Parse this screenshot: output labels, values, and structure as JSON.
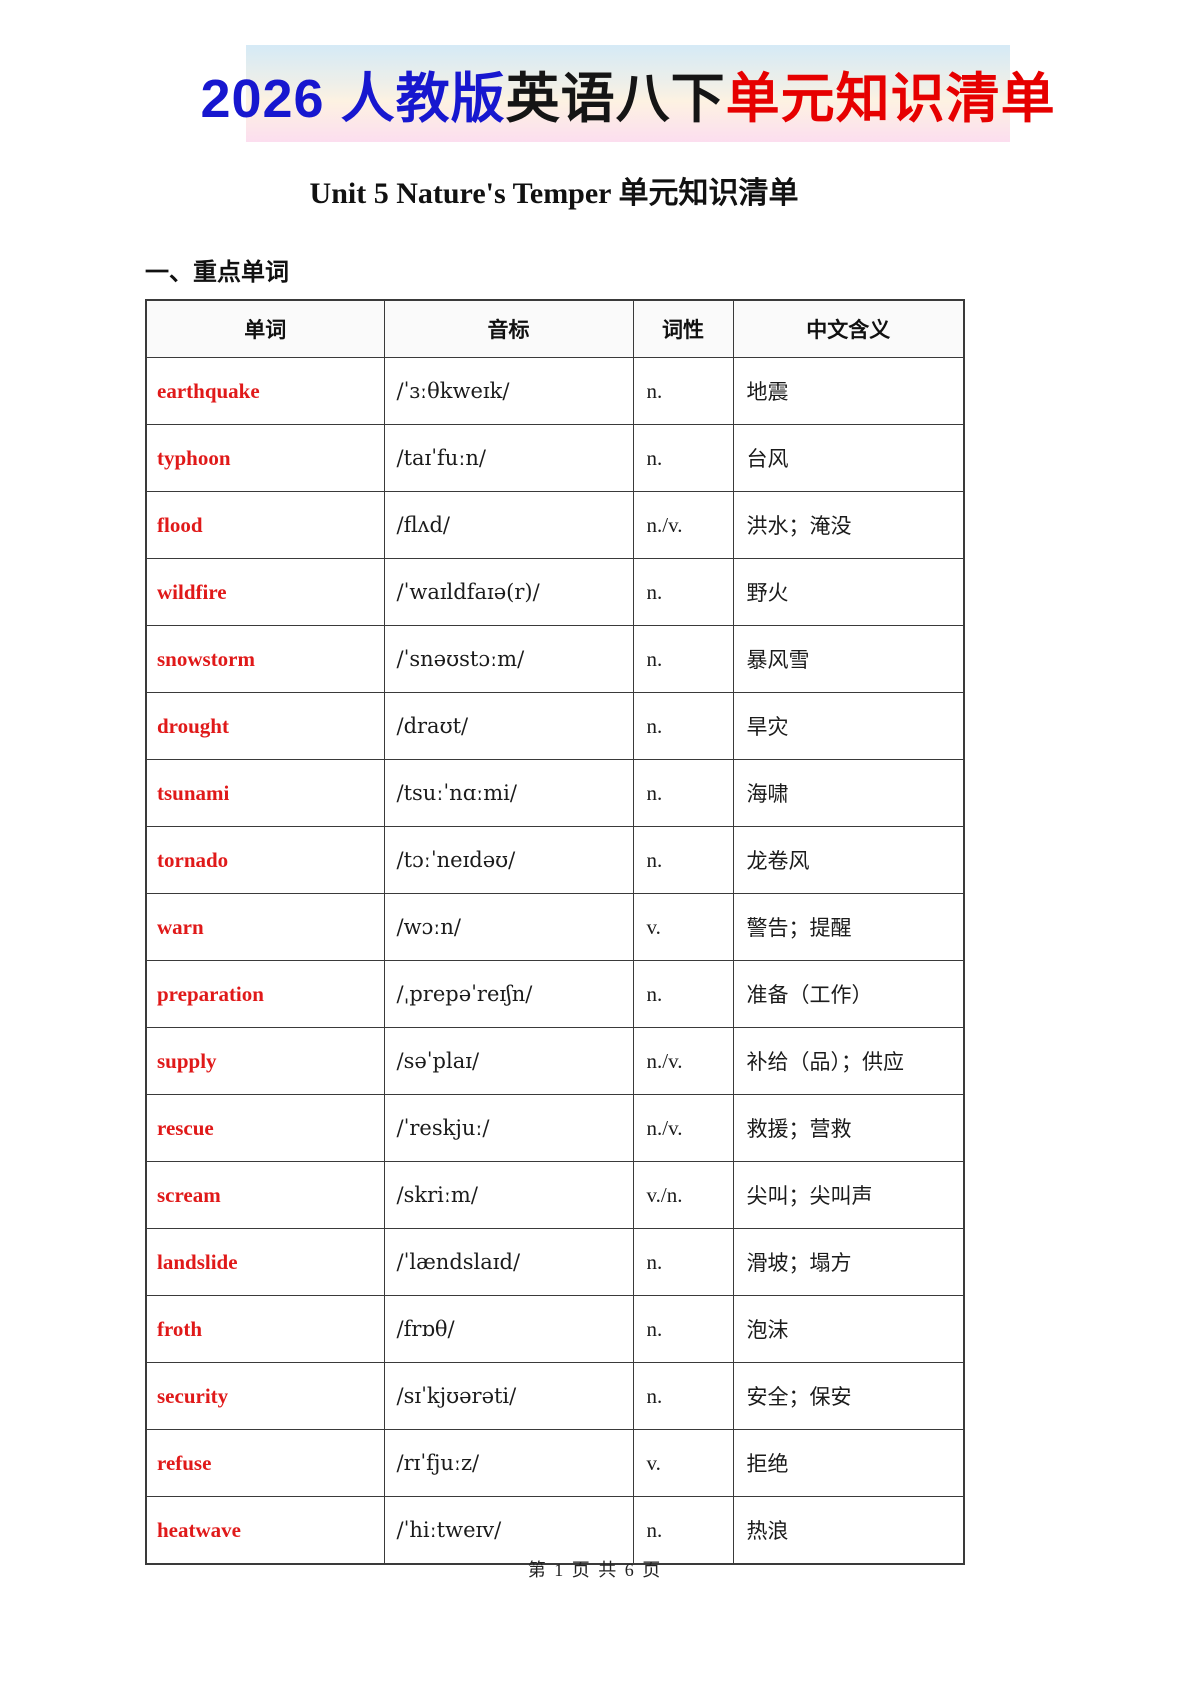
{
  "banner": {
    "part1": "2026 人教版",
    "part2": "英语八下",
    "part3": "单元知识清单"
  },
  "title": "Unit 5 Nature's Temper  单元知识清单",
  "section_heading": "一、重点单词",
  "table": {
    "headers": [
      "单词",
      "音标",
      "词性",
      "中文含义"
    ],
    "rows": [
      {
        "word": "earthquake",
        "phonetic": "/ˈɜːθkweɪk/",
        "pos": "n.",
        "meaning": "地震"
      },
      {
        "word": "typhoon",
        "phonetic": "/taɪˈfuːn/",
        "pos": "n.",
        "meaning": "台风"
      },
      {
        "word": "flood",
        "phonetic": "/flʌd/",
        "pos": "n./v.",
        "meaning": "洪水；淹没"
      },
      {
        "word": "wildfire",
        "phonetic": "/ˈwaɪldfaɪə(r)/",
        "pos": "n.",
        "meaning": "野火"
      },
      {
        "word": "snowstorm",
        "phonetic": "/ˈsnəʊstɔːm/",
        "pos": "n.",
        "meaning": "暴风雪"
      },
      {
        "word": "drought",
        "phonetic": "/draʊt/",
        "pos": "n.",
        "meaning": "旱灾"
      },
      {
        "word": "tsunami",
        "phonetic": "/tsuːˈnɑːmi/",
        "pos": "n.",
        "meaning": "海啸"
      },
      {
        "word": "tornado",
        "phonetic": "/tɔːˈneɪdəʊ/",
        "pos": "n.",
        "meaning": "龙卷风"
      },
      {
        "word": "warn",
        "phonetic": "/wɔːn/",
        "pos": "v.",
        "meaning": "警告；提醒"
      },
      {
        "word": "preparation",
        "phonetic": "/ˌprepəˈreɪʃn/",
        "pos": "n.",
        "meaning": "准备（工作）"
      },
      {
        "word": "supply",
        "phonetic": "/səˈplaɪ/",
        "pos": "n./v.",
        "meaning": "补给（品）；供应"
      },
      {
        "word": "rescue",
        "phonetic": "/ˈreskjuː/",
        "pos": "n./v.",
        "meaning": "救援；营救"
      },
      {
        "word": "scream",
        "phonetic": "/skriːm/",
        "pos": "v./n.",
        "meaning": "尖叫；尖叫声"
      },
      {
        "word": "landslide",
        "phonetic": "/ˈlændslaɪd/",
        "pos": "n.",
        "meaning": "滑坡；塌方"
      },
      {
        "word": "froth",
        "phonetic": "/frɒθ/",
        "pos": "n.",
        "meaning": "泡沫"
      },
      {
        "word": "security",
        "phonetic": "/sɪˈkjʊərəti/",
        "pos": "n.",
        "meaning": "安全；保安"
      },
      {
        "word": "refuse",
        "phonetic": "/rɪˈfjuːz/",
        "pos": "v.",
        "meaning": "拒绝"
      },
      {
        "word": "heatwave",
        "phonetic": "/ˈhiːtweɪv/",
        "pos": "n.",
        "meaning": "热浪"
      }
    ]
  },
  "footer": "第 1 页 共 6 页",
  "colors": {
    "banner_text_blue": "#1717cf",
    "banner_text_black": "#151515",
    "banner_text_red": "#e60000",
    "word_red": "#e01919",
    "table_border": "#3a3a3a",
    "banner_gradient_top": "#d5eaf6",
    "banner_gradient_mid": "#fdf2e2",
    "banner_gradient_bottom": "#fcdeef"
  }
}
